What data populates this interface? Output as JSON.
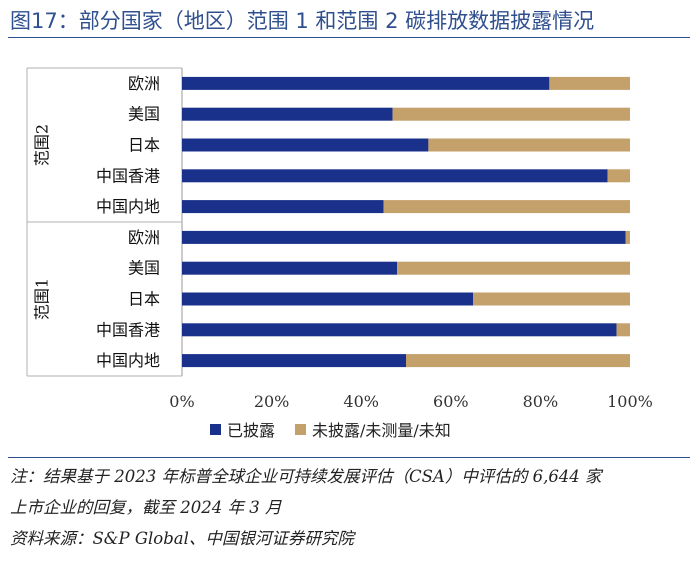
{
  "figure": {
    "title": "图17：部分国家（地区）范围 1 和范围 2 碳排放数据披露情况"
  },
  "chart_data": {
    "type": "bar",
    "orientation": "horizontal",
    "stacked": true,
    "groups": [
      {
        "label": "范围2",
        "categories": [
          "欧洲",
          "美国",
          "日本",
          "中国香港",
          "中国内地"
        ]
      },
      {
        "label": "范围1",
        "categories": [
          "欧洲",
          "美国",
          "日本",
          "中国香港",
          "中国内地"
        ]
      }
    ],
    "categories": [
      "欧洲",
      "美国",
      "日本",
      "中国香港",
      "中国内地",
      "欧洲",
      "美国",
      "日本",
      "中国香港",
      "中国内地"
    ],
    "series": [
      {
        "name": "已披露",
        "color": "#1a318c",
        "values": [
          82,
          47,
          55,
          95,
          45,
          99,
          48,
          65,
          97,
          50
        ]
      },
      {
        "name": "未披露/未测量/未知",
        "color": "#c4a06a",
        "values": [
          18,
          53,
          45,
          5,
          55,
          1,
          52,
          35,
          3,
          50
        ]
      }
    ],
    "x_ticks": [
      "0%",
      "20%",
      "40%",
      "60%",
      "80%",
      "100%"
    ],
    "xlim": [
      0,
      100
    ],
    "legend_position": "bottom",
    "grid": false
  },
  "notes": {
    "line1": "注：结果基于 2023 年标普全球企业可持续发展评估（CSA）中评估的 6,644 家",
    "line2": "上市企业的回复，截至 2024 年 3 月",
    "source": "资料来源：S&P Global、中国银河证券研究院"
  }
}
